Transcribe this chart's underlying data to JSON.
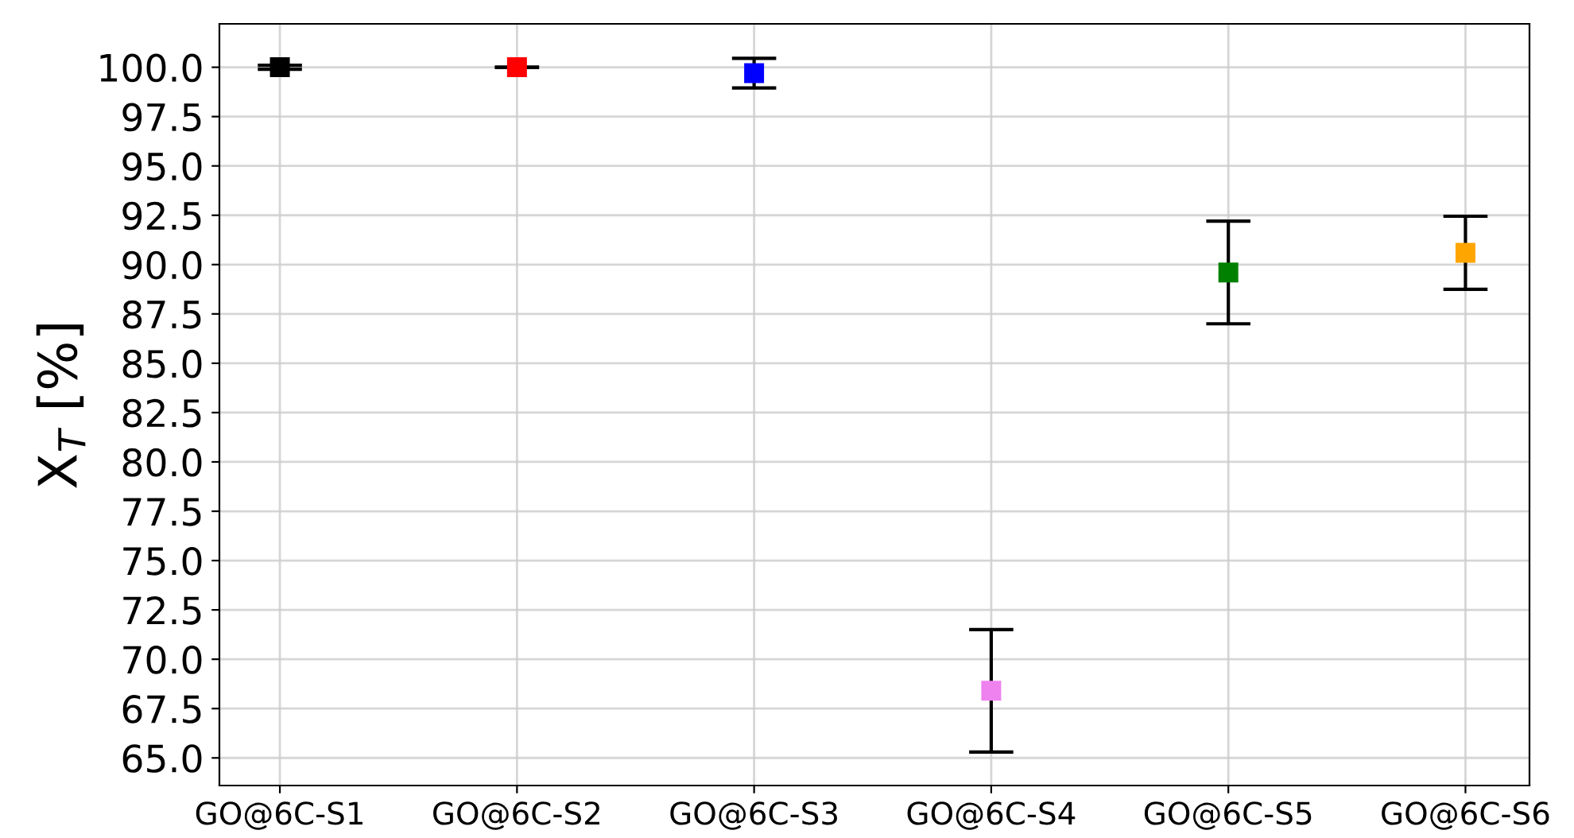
{
  "chart_data": {
    "type": "scatter",
    "ylabel": "X$_{T}$ [%]",
    "categories": [
      "GO@6C-S1",
      "GO@6C-S2",
      "GO@6C-S3",
      "GO@6C-S4",
      "GO@6C-S5",
      "GO@6C-S6"
    ],
    "values": [
      100.0,
      100.0,
      99.7,
      68.4,
      89.6,
      90.6
    ],
    "errors": [
      0.1,
      0,
      0.75,
      3.1,
      2.6,
      1.85
    ],
    "colors": [
      "#000000",
      "#ff0000",
      "#0000ff",
      "#ee82ee",
      "#008000",
      "#ffa500"
    ],
    "ylim": [
      63.6,
      102.2
    ],
    "yticks": [
      {
        "value": 65,
        "label": "65.0"
      },
      67.5,
      {
        "value": 70,
        "label": "70.0"
      },
      72.5,
      {
        "value": 75,
        "label": "75.0"
      },
      77.5,
      {
        "value": 80,
        "label": "80.0"
      },
      82.5,
      {
        "value": 85,
        "label": "85.0"
      },
      87.5,
      {
        "value": 90,
        "label": "90.0"
      },
      92.5,
      {
        "value": 95,
        "label": "95.0"
      },
      97.5,
      {
        "value": 100,
        "label": "100.0"
      }
    ],
    "grid": true,
    "marker": "square"
  }
}
